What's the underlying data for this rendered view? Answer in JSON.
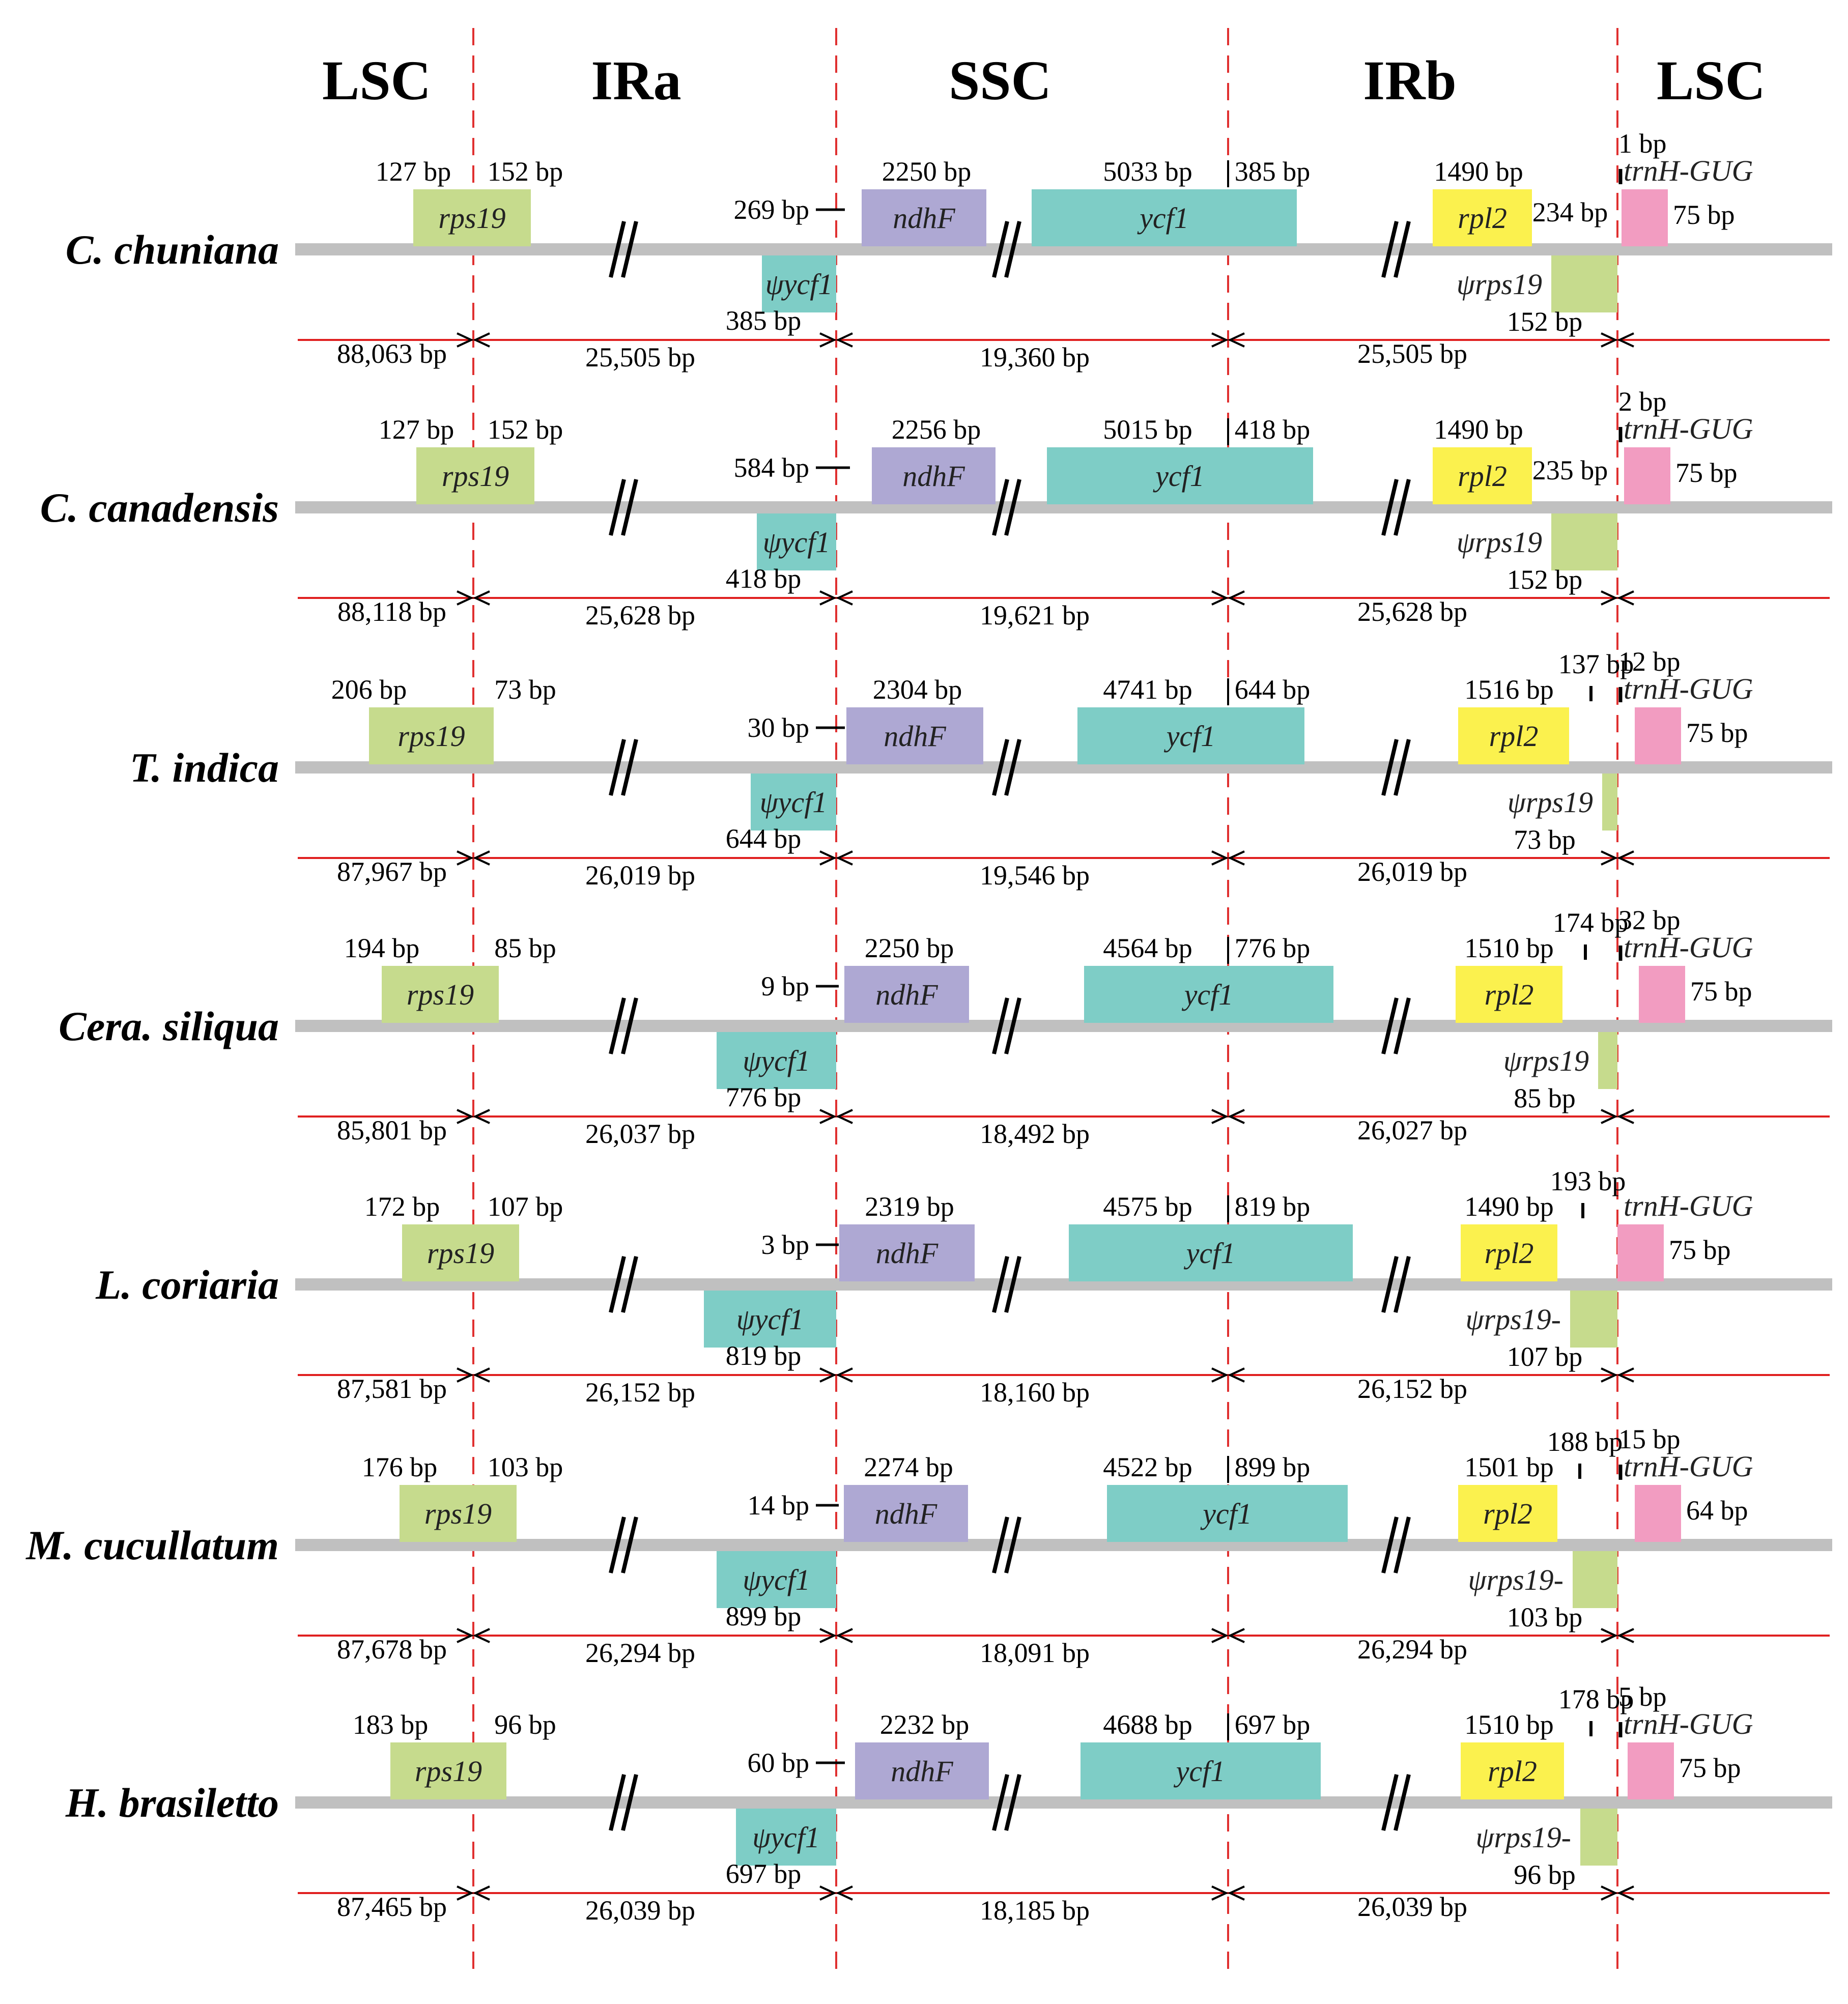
{
  "regions": [
    "LSC",
    "IRa",
    "SSC",
    "IRb",
    "LSC"
  ],
  "colors": {
    "rps19": "#c6db8d",
    "ycf1": "#7ecdc6",
    "ndhF": "#aea8d3",
    "rpl2": "#fbf14e",
    "trnH": "#f29cc1",
    "backbone": "#c0c0c0",
    "length_line": "#e02020",
    "boundary": "#e03030"
  },
  "genes": {
    "rps19": "rps19",
    "psi_ycf1": "ψycf1",
    "ndhF": "ndhF",
    "ycf1": "ycf1",
    "rpl2": "rpl2",
    "trnH": "trnH-GUG"
  },
  "species": [
    {
      "name": "C. chuniana",
      "rps19_lsc": "127 bp",
      "rps19_ir": "152 bp",
      "ycf1_ir_a": "385 bp",
      "ndhF_len": "2250 bp",
      "ndhF_gap": "269 bp",
      "ycf1_ssc": "5033 bp",
      "ycf1_ir": "385 bp",
      "rpl2_len": "1490 bp",
      "rpl2_gap": "234 bp",
      "psi_rps19": "ψrps19",
      "psi_rps19_len": "152 bp",
      "trnH_gap": "1 bp",
      "trnH_len": "75 bp",
      "lsc_len": "88,063 bp",
      "ira_len": "25,505 bp",
      "ssc_len": "19,360 bp",
      "irb_len": "25,505 bp"
    },
    {
      "name": "C. canadensis",
      "rps19_lsc": "127 bp",
      "rps19_ir": "152 bp",
      "ycf1_ir_a": "418 bp",
      "ndhF_len": "2256 bp",
      "ndhF_gap": "584 bp",
      "ycf1_ssc": "5015 bp",
      "ycf1_ir": "418 bp",
      "rpl2_len": "1490 bp",
      "rpl2_gap": "235 bp",
      "psi_rps19": "ψrps19",
      "psi_rps19_len": "152 bp",
      "trnH_gap": "2 bp",
      "trnH_len": "75 bp",
      "lsc_len": "88,118 bp",
      "ira_len": "25,628 bp",
      "ssc_len": "19,621 bp",
      "irb_len": "25,628 bp"
    },
    {
      "name": "T. indica",
      "rps19_lsc": "206 bp",
      "rps19_ir": "73 bp",
      "ycf1_ir_a": "644 bp",
      "ndhF_len": "2304 bp",
      "ndhF_gap": "30 bp",
      "ycf1_ssc": "4741 bp",
      "ycf1_ir": "644 bp",
      "rpl2_len": "1516 bp",
      "rpl2_gap": "137 bp",
      "psi_rps19": "ψrps19",
      "psi_rps19_len": "73 bp",
      "trnH_gap": "12 bp",
      "trnH_len": "75 bp",
      "lsc_len": "87,967 bp",
      "ira_len": "26,019 bp",
      "ssc_len": "19,546 bp",
      "irb_len": "26,019 bp"
    },
    {
      "name": "Cera. siliqua",
      "rps19_lsc": "194 bp",
      "rps19_ir": "85 bp",
      "ycf1_ir_a": "776 bp",
      "ndhF_len": "2250 bp",
      "ndhF_gap": "9 bp",
      "ycf1_ssc": "4564 bp",
      "ycf1_ir": "776 bp",
      "rpl2_len": "1510 bp",
      "rpl2_gap": "174 bp",
      "psi_rps19": "ψrps19",
      "psi_rps19_len": "85 bp",
      "trnH_gap": "32 bp",
      "trnH_len": "75 bp",
      "lsc_len": "85,801 bp",
      "ira_len": "26,037 bp",
      "ssc_len": "18,492 bp",
      "irb_len": "26,027 bp"
    },
    {
      "name": "L. coriaria",
      "rps19_lsc": "172 bp",
      "rps19_ir": "107 bp",
      "ycf1_ir_a": "819 bp",
      "ndhF_len": "2319 bp",
      "ndhF_gap": "3 bp",
      "ycf1_ssc": "4575 bp",
      "ycf1_ir": "819 bp",
      "rpl2_len": "1490 bp",
      "rpl2_gap": "193 bp",
      "psi_rps19": "ψrps19-",
      "psi_rps19_len": "107 bp",
      "trnH_gap": "",
      "trnH_len": "75 bp",
      "lsc_len": "87,581 bp",
      "ira_len": "26,152 bp",
      "ssc_len": "18,160 bp",
      "irb_len": "26,152 bp"
    },
    {
      "name": "M. cucullatum",
      "rps19_lsc": "176 bp",
      "rps19_ir": "103 bp",
      "ycf1_ir_a": "899 bp",
      "ndhF_len": "2274 bp",
      "ndhF_gap": "14 bp",
      "ycf1_ssc": "4522 bp",
      "ycf1_ir": "899 bp",
      "rpl2_len": "1501 bp",
      "rpl2_gap": "188 bp",
      "psi_rps19": "ψrps19-",
      "psi_rps19_len": "103 bp",
      "trnH_gap": "15 bp",
      "trnH_len": "64 bp",
      "lsc_len": "87,678 bp",
      "ira_len": "26,294 bp",
      "ssc_len": "18,091 bp",
      "irb_len": "26,294 bp"
    },
    {
      "name": "H. brasiletto",
      "rps19_lsc": "183 bp",
      "rps19_ir": "96 bp",
      "ycf1_ir_a": "697 bp",
      "ndhF_len": "2232 bp",
      "ndhF_gap": "60 bp",
      "ycf1_ssc": "4688 bp",
      "ycf1_ir": "697 bp",
      "rpl2_len": "1510 bp",
      "rpl2_gap": "178 bp",
      "psi_rps19": "ψrps19-",
      "psi_rps19_len": "96 bp",
      "trnH_gap": "5 bp",
      "trnH_len": "75 bp",
      "lsc_len": "87,465 bp",
      "ira_len": "26,039 bp",
      "ssc_len": "18,185 bp",
      "irb_len": "26,039 bp"
    }
  ]
}
